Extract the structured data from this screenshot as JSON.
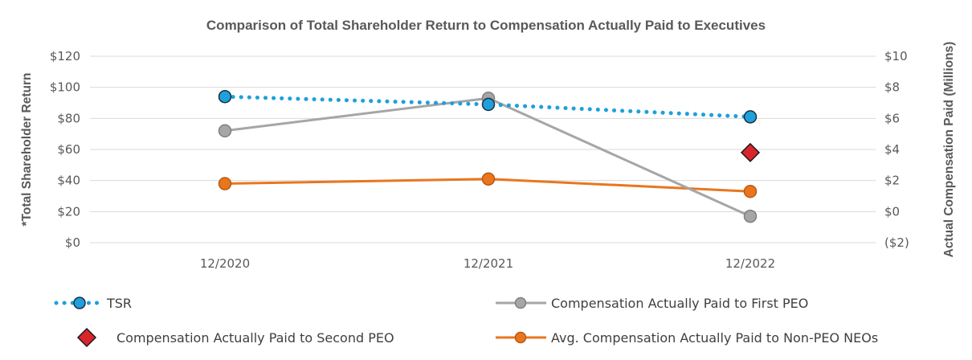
{
  "chart_data": {
    "type": "line",
    "title": "Comparison of Total Shareholder Return to Compensation Actually Paid to Executives",
    "categories": [
      "12/2020",
      "12/2021",
      "12/2022"
    ],
    "y_left": {
      "label": "*Total Shareholder Return",
      "range": [
        0,
        120
      ],
      "ticks": [
        "$0",
        "$20",
        "$40",
        "$60",
        "$80",
        "$100",
        "$120"
      ]
    },
    "y_right": {
      "label": "Actual Compensation Paid (Millions)",
      "range": [
        -2,
        10
      ],
      "ticks": [
        "($2)",
        "$0",
        "$2",
        "$4",
        "$6",
        "$8",
        "$10"
      ]
    },
    "series": [
      {
        "name": "TSR",
        "axis": "left",
        "style": "dotted",
        "color": "#1fa0dc",
        "values": [
          94,
          89,
          81
        ]
      },
      {
        "name": "Compensation Actually Paid to First PEO",
        "axis": "right",
        "style": "solid",
        "color": "#a6a6a6",
        "values": [
          5.2,
          7.3,
          -0.3
        ]
      },
      {
        "name": "Compensation Actually Paid to Second PEO",
        "axis": "right",
        "style": "marker-only",
        "marker": "diamond",
        "color": "#d9262c",
        "values": [
          null,
          null,
          3.8
        ]
      },
      {
        "name": "Avg. Compensation Actually Paid to Non-PEO NEOs",
        "axis": "right",
        "style": "solid",
        "color": "#e9761f",
        "values": [
          1.8,
          2.1,
          1.3
        ]
      }
    ],
    "grid": true,
    "legend_position": "bottom"
  }
}
